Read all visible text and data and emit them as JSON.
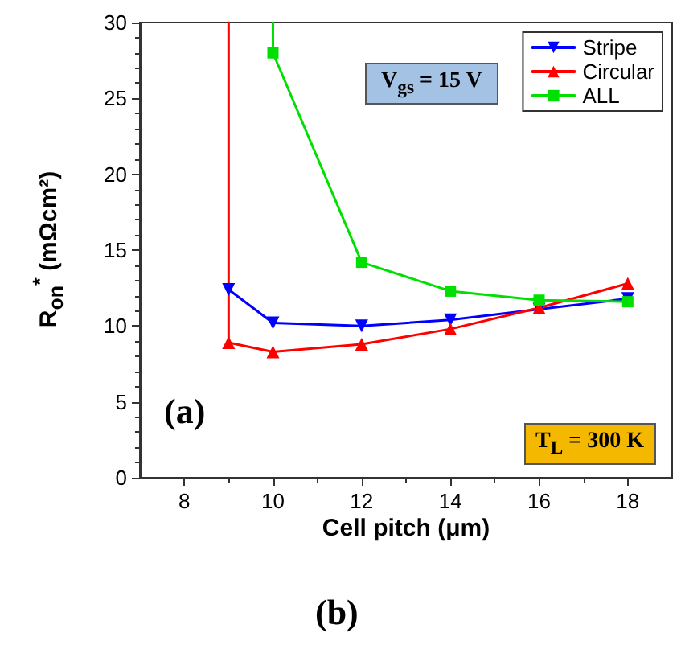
{
  "chart_data": {
    "type": "line",
    "xlabel": "Cell pitch (μm)",
    "ylabel": "R$_{on}$$^{*}$ (mΩcm²)",
    "annotations": [
      "V$_{gs}$ = 15 V",
      "T$_{L}$ = 300 K",
      "(a)",
      "(b)"
    ],
    "xlim": [
      7,
      19
    ],
    "xticks": [
      8,
      10,
      12,
      14,
      16,
      18
    ],
    "ylim": [
      0,
      30
    ],
    "yticks": [
      0,
      5,
      10,
      15,
      20,
      25,
      30
    ],
    "grid": false,
    "legend": "top right",
    "line_style": "solid",
    "series": [
      {
        "name": "Stripe",
        "color": "#0000ff",
        "marker": "triangle-down",
        "x": [
          9,
          10,
          12,
          14,
          16,
          18
        ],
        "values": [
          12.4,
          10.2,
          10.0,
          10.4,
          11.1,
          11.8
        ]
      },
      {
        "name": "Circular",
        "color": "#ff0000",
        "marker": "triangle",
        "x": [
          9,
          9,
          10,
          12,
          14,
          16,
          18
        ],
        "values": [
          30,
          8.9,
          8.3,
          8.8,
          9.8,
          11.2,
          12.8
        ]
      },
      {
        "name": "ALL",
        "color": "#00e000",
        "marker": "square",
        "x": [
          10,
          10,
          12,
          14,
          16,
          18
        ],
        "values": [
          30,
          28,
          14.2,
          12.3,
          11.7,
          11.6
        ]
      }
    ]
  }
}
